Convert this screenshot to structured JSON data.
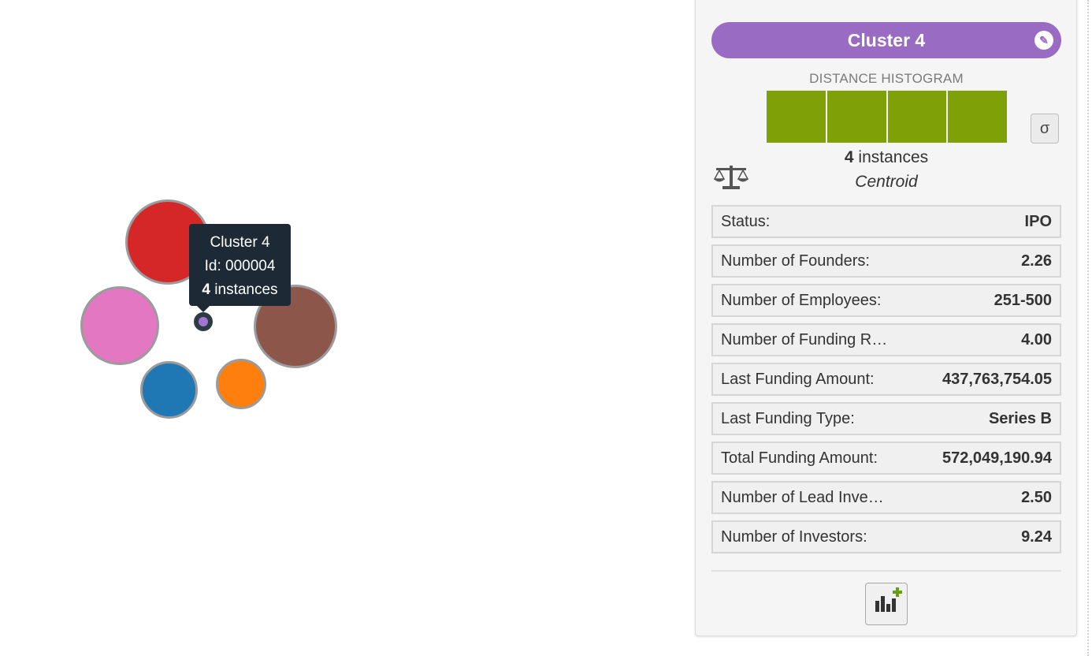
{
  "map": {
    "clusters": [
      {
        "name": "cluster-red",
        "color": "#d62728"
      },
      {
        "name": "cluster-pink",
        "color": "#e377c2"
      },
      {
        "name": "cluster-brown",
        "color": "#8c564b"
      },
      {
        "name": "cluster-blue",
        "color": "#1f77b4"
      },
      {
        "name": "cluster-orange",
        "color": "#ff7f0e"
      }
    ],
    "selected_cluster_color": "#a176d0"
  },
  "tooltip": {
    "name": "Cluster 4",
    "id_text": "Id: 000004",
    "instances_count": "4",
    "instances_word": "instances"
  },
  "panel": {
    "title": "Cluster 4",
    "title_color": "#9a6bc2",
    "edit_icon": "pencil-icon",
    "histogram_label": "DISTANCE HISTOGRAM",
    "histogram_color": "#7fa107",
    "histogram_bars": 4,
    "sigma_label": "σ",
    "balance_icon": "balance-scale-icon",
    "instances_count": "4",
    "instances_word": "instances",
    "centroid_label": "Centroid",
    "fields": [
      {
        "label": "Status:",
        "value": "IPO"
      },
      {
        "label": "Number of Founders:",
        "value": "2.26"
      },
      {
        "label": "Number of Employees:",
        "value": "251-500"
      },
      {
        "label": "Number of Funding R…",
        "value": "4.00"
      },
      {
        "label": "Last Funding Amount:",
        "value": "437,763,754.05"
      },
      {
        "label": "Last Funding Type:",
        "value": "Series B"
      },
      {
        "label": "Total Funding Amount:",
        "value": "572,049,190.94"
      },
      {
        "label": "Number of Lead Inve…",
        "value": "2.50"
      },
      {
        "label": "Number of Investors:",
        "value": "9.24"
      }
    ],
    "add_chart_icon": "add-chart-icon"
  }
}
